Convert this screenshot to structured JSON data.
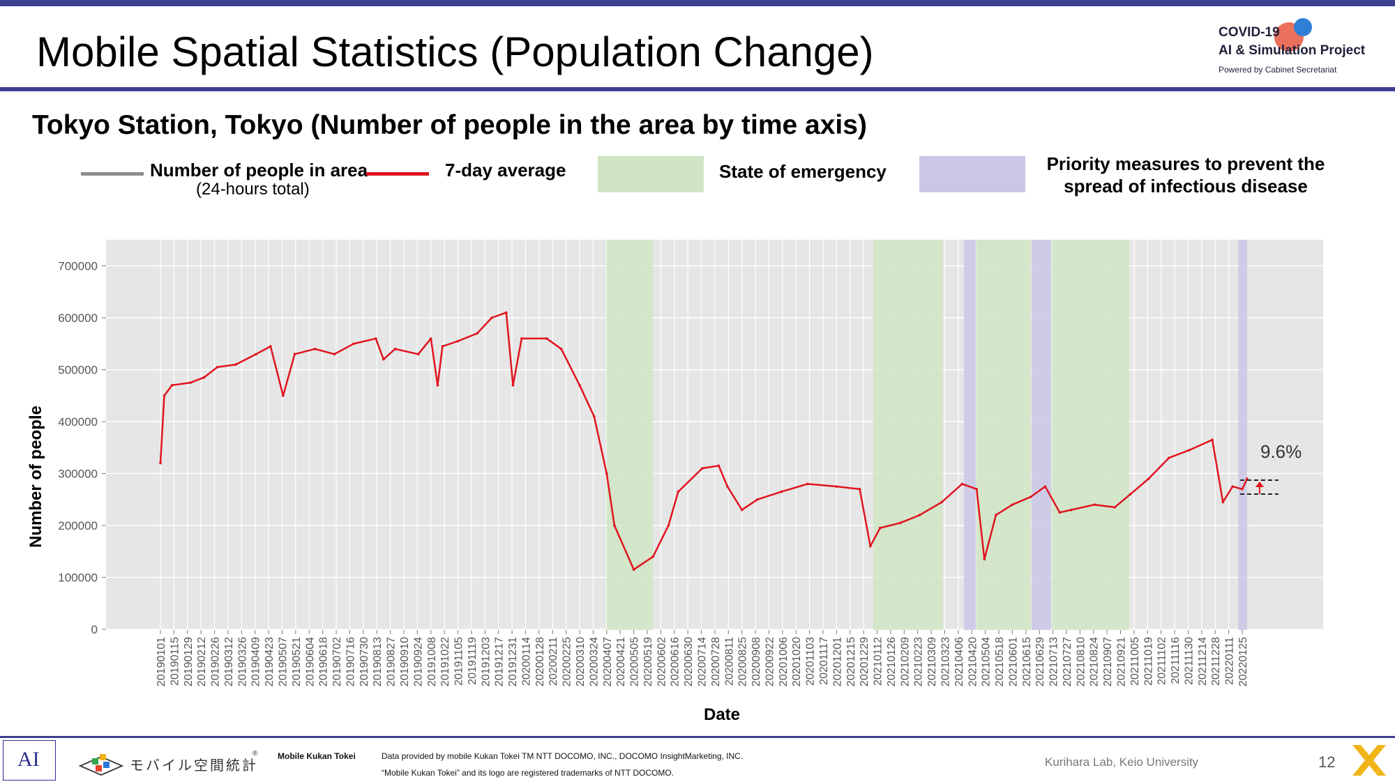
{
  "page_title": "Mobile Spatial Statistics (Population Change)",
  "logo": {
    "line1": "COVID-19",
    "line2": "AI & Simulation Project",
    "line3": "Powered by Cabinet Secretariat"
  },
  "chart_data": {
    "type": "line",
    "title": "Tokyo Station, Tokyo (Number of people in the area by time axis)",
    "xlabel": "Date",
    "ylabel": "Number of people",
    "ylim": [
      0,
      750000
    ],
    "yticks": [
      0,
      100000,
      200000,
      300000,
      400000,
      500000,
      600000,
      700000
    ],
    "x_tick_labels": [
      "20190101",
      "20190115",
      "20190129",
      "20190212",
      "20190226",
      "20190312",
      "20190326",
      "20190409",
      "20190423",
      "20190507",
      "20190521",
      "20190604",
      "20190618",
      "20190702",
      "20190716",
      "20190730",
      "20190813",
      "20190827",
      "20190910",
      "20190924",
      "20191008",
      "20191022",
      "20191105",
      "20191119",
      "20191203",
      "20191217",
      "20191231",
      "20200114",
      "20200128",
      "20200211",
      "20200225",
      "20200310",
      "20200324",
      "20200407",
      "20200421",
      "20200505",
      "20200519",
      "20200602",
      "20200616",
      "20200630",
      "20200714",
      "20200728",
      "20200811",
      "20200825",
      "20200908",
      "20200922",
      "20201006",
      "20201020",
      "20201103",
      "20201117",
      "20201201",
      "20201215",
      "20201229",
      "20210112",
      "20210126",
      "20210209",
      "20210223",
      "20210309",
      "20210323",
      "20210406",
      "20210420",
      "20210504",
      "20210518",
      "20210601",
      "20210615",
      "20210629",
      "20210713",
      "20210727",
      "20210810",
      "20210824",
      "20210907",
      "20210921",
      "20211005",
      "20211019",
      "20211102",
      "20211116",
      "20211130",
      "20211214",
      "20211228",
      "20220111",
      "20220125"
    ],
    "grid": true,
    "background": "#e6e6e6",
    "legend": [
      {
        "name": "Number of people in area",
        "note": "(24-hours total)",
        "color": "#8c8c8c",
        "kind": "line"
      },
      {
        "name": "7-day average",
        "color": "#e0141e",
        "kind": "line"
      },
      {
        "name": "State of emergency",
        "color": "#cfe5c4",
        "kind": "band"
      },
      {
        "name": "Priority measures to prevent the spread of infectious disease",
        "color": "#c9c6e6",
        "kind": "band"
      }
    ],
    "periods": [
      {
        "type": "State of emergency",
        "start": "20200407",
        "end": "20200525"
      },
      {
        "type": "State of emergency",
        "start": "20210108",
        "end": "20210321"
      },
      {
        "type": "Priority measures to prevent the spread of infectious disease",
        "start": "20210412",
        "end": "20210424"
      },
      {
        "type": "State of emergency",
        "start": "20210425",
        "end": "20210620"
      },
      {
        "type": "Priority measures to prevent the spread of infectious disease",
        "start": "20210621",
        "end": "20210711"
      },
      {
        "type": "State of emergency",
        "start": "20210712",
        "end": "20210930"
      },
      {
        "type": "Priority measures to prevent the spread of infectious disease",
        "start": "20220121",
        "end": "20220130"
      }
    ],
    "series": [
      {
        "name": "7-day average",
        "color": "#e0141e",
        "points": [
          [
            "20190101",
            320000
          ],
          [
            "20190105",
            450000
          ],
          [
            "20190113",
            470000
          ],
          [
            "20190201",
            475000
          ],
          [
            "20190215",
            485000
          ],
          [
            "20190301",
            505000
          ],
          [
            "20190320",
            510000
          ],
          [
            "20190410",
            530000
          ],
          [
            "20190425",
            545000
          ],
          [
            "20190508",
            450000
          ],
          [
            "20190520",
            530000
          ],
          [
            "20190610",
            540000
          ],
          [
            "20190630",
            530000
          ],
          [
            "20190720",
            550000
          ],
          [
            "20190812",
            560000
          ],
          [
            "20190820",
            520000
          ],
          [
            "20190901",
            540000
          ],
          [
            "20190925",
            530000
          ],
          [
            "20191008",
            560000
          ],
          [
            "20191015",
            470000
          ],
          [
            "20191020",
            545000
          ],
          [
            "20191105",
            555000
          ],
          [
            "20191125",
            570000
          ],
          [
            "20191210",
            600000
          ],
          [
            "20191225",
            610000
          ],
          [
            "20200101",
            470000
          ],
          [
            "20200110",
            560000
          ],
          [
            "20200205",
            560000
          ],
          [
            "20200220",
            540000
          ],
          [
            "20200310",
            470000
          ],
          [
            "20200325",
            410000
          ],
          [
            "20200407",
            300000
          ],
          [
            "20200415",
            200000
          ],
          [
            "20200505",
            115000
          ],
          [
            "20200525",
            140000
          ],
          [
            "20200610",
            200000
          ],
          [
            "20200620",
            265000
          ],
          [
            "20200715",
            310000
          ],
          [
            "20200801",
            315000
          ],
          [
            "20200810",
            275000
          ],
          [
            "20200825",
            230000
          ],
          [
            "20200910",
            250000
          ],
          [
            "20201005",
            265000
          ],
          [
            "20201101",
            280000
          ],
          [
            "20201201",
            275000
          ],
          [
            "20201225",
            270000
          ],
          [
            "20210105",
            160000
          ],
          [
            "20210115",
            195000
          ],
          [
            "20210205",
            205000
          ],
          [
            "20210225",
            220000
          ],
          [
            "20210320",
            245000
          ],
          [
            "20210410",
            280000
          ],
          [
            "20210425",
            270000
          ],
          [
            "20210503",
            135000
          ],
          [
            "20210515",
            220000
          ],
          [
            "20210601",
            240000
          ],
          [
            "20210620",
            255000
          ],
          [
            "20210705",
            275000
          ],
          [
            "20210720",
            225000
          ],
          [
            "20210801",
            230000
          ],
          [
            "20210825",
            240000
          ],
          [
            "20210915",
            235000
          ],
          [
            "20211001",
            260000
          ],
          [
            "20211020",
            290000
          ],
          [
            "20211110",
            330000
          ],
          [
            "20211201",
            345000
          ],
          [
            "20211225",
            365000
          ],
          [
            "20220105",
            245000
          ],
          [
            "20220115",
            275000
          ],
          [
            "20220125",
            270000
          ],
          [
            "20220130",
            290000
          ]
        ]
      }
    ],
    "annotation": {
      "text": "9.6%"
    }
  },
  "footer": {
    "lab_logo_text": "AI",
    "brand_text": "モバイル空間統計",
    "brand_mark": "®",
    "product_name": "Mobile Kukan Tokei",
    "provider_line1": "Data provided by mobile Kukan Tokei TM NTT DOCOMO, INC., DOCOMO InsightMarketing, INC.",
    "provider_line2": "“Mobile Kukan Tokei” and its logo are registered trademarks of NTT DOCOMO.",
    "university": "Kurihara Lab, Keio University",
    "page_number": "12"
  }
}
